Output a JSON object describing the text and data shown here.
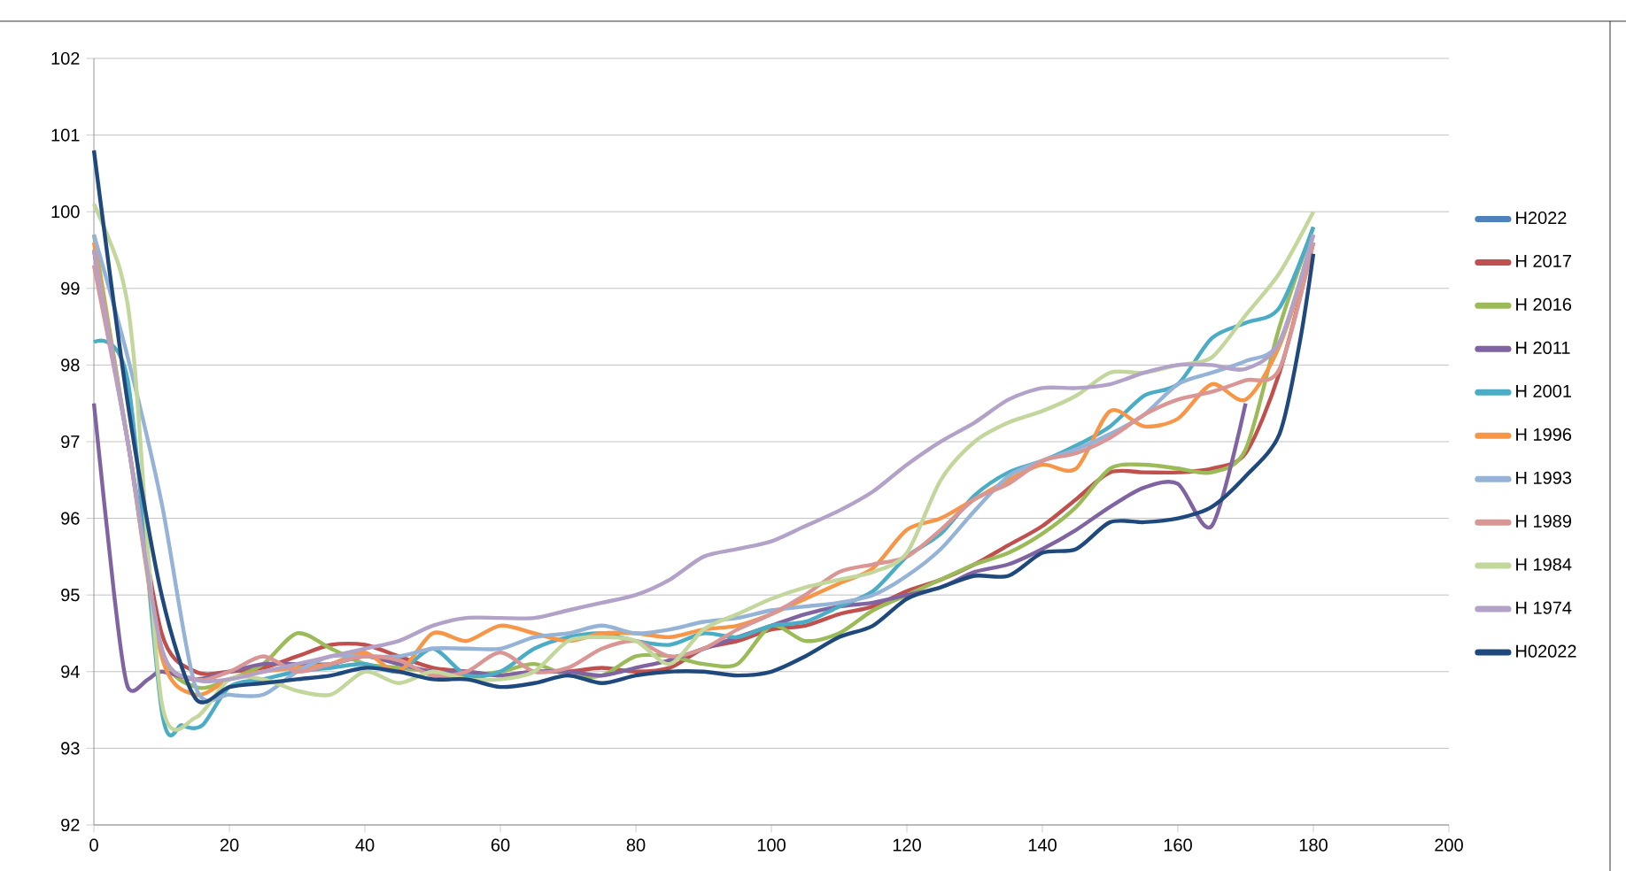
{
  "chart_data": {
    "type": "line",
    "xlim": [
      0,
      200
    ],
    "ylim": [
      92,
      102
    ],
    "xticks": [
      0,
      20,
      40,
      60,
      80,
      100,
      120,
      140,
      160,
      180,
      200
    ],
    "yticks": [
      92,
      93,
      94,
      95,
      96,
      97,
      98,
      99,
      100,
      101,
      102
    ],
    "grid": "y",
    "legend": "right",
    "marker": "none",
    "line_style": "solid",
    "series": [
      {
        "name": "H2022",
        "color": "#4f81bd",
        "values": [
          null
        ]
      },
      {
        "name": "H 2017",
        "color": "#c0504d",
        "x": [
          0,
          5,
          10,
          15,
          20,
          25,
          30,
          35,
          40,
          45,
          50,
          55,
          60,
          65,
          70,
          75,
          80,
          85,
          90,
          95,
          100,
          105,
          110,
          115,
          120,
          125,
          130,
          135,
          140,
          145,
          150,
          155,
          160,
          165,
          170,
          175,
          180
        ],
        "values": [
          99.5,
          97,
          94.5,
          94.0,
          94.0,
          94.05,
          94.2,
          94.35,
          94.35,
          94.2,
          94.05,
          94.0,
          93.95,
          94.0,
          94.0,
          94.05,
          94.0,
          94.05,
          94.3,
          94.4,
          94.55,
          94.6,
          94.75,
          94.85,
          95.05,
          95.2,
          95.4,
          95.65,
          95.9,
          96.25,
          96.6,
          96.6,
          96.6,
          96.65,
          96.85,
          97.9,
          99.6
        ]
      },
      {
        "name": "H 2016",
        "color": "#9bbb59",
        "x": [
          0,
          5,
          10,
          15,
          20,
          25,
          30,
          35,
          40,
          45,
          50,
          55,
          60,
          65,
          70,
          75,
          80,
          85,
          90,
          95,
          100,
          105,
          110,
          115,
          120,
          125,
          130,
          135,
          140,
          145,
          150,
          155,
          160,
          165,
          170,
          175,
          180
        ],
        "values": [
          99.7,
          97,
          94.3,
          93.8,
          93.9,
          94.1,
          94.5,
          94.3,
          94.1,
          94.05,
          94.0,
          93.95,
          94.0,
          94.1,
          93.95,
          93.95,
          94.2,
          94.2,
          94.1,
          94.1,
          94.6,
          94.4,
          94.5,
          94.8,
          95.0,
          95.2,
          95.4,
          95.55,
          95.8,
          96.15,
          96.65,
          96.7,
          96.65,
          96.6,
          96.9,
          98.5,
          99.8
        ]
      },
      {
        "name": "H 2011",
        "color": "#8064a2",
        "x": [
          0,
          3,
          5,
          8,
          10,
          15,
          20,
          25,
          30,
          35,
          40,
          45,
          50,
          55,
          60,
          65,
          70,
          75,
          80,
          85,
          90,
          95,
          100,
          105,
          110,
          115,
          120,
          125,
          130,
          135,
          140,
          145,
          150,
          155,
          160,
          165,
          170
        ],
        "values": [
          97.5,
          95,
          93.8,
          93.9,
          94.0,
          93.9,
          94.0,
          94.1,
          94.1,
          94.1,
          94.2,
          94.1,
          94.0,
          94.0,
          93.95,
          94.0,
          94.0,
          93.95,
          94.05,
          94.15,
          94.3,
          94.45,
          94.6,
          94.75,
          94.85,
          94.9,
          95.0,
          95.1,
          95.3,
          95.4,
          95.6,
          95.85,
          96.15,
          96.4,
          96.45,
          95.9,
          97.5
        ]
      },
      {
        "name": "H 2001",
        "color": "#4bacc6",
        "x": [
          0,
          5,
          10,
          13,
          16,
          20,
          25,
          30,
          35,
          40,
          45,
          50,
          55,
          60,
          65,
          70,
          75,
          80,
          85,
          90,
          95,
          100,
          105,
          110,
          115,
          120,
          125,
          130,
          135,
          140,
          145,
          150,
          155,
          160,
          165,
          170,
          175,
          180
        ],
        "values": [
          98.3,
          97.8,
          93.5,
          93.3,
          93.3,
          93.8,
          93.9,
          94.0,
          94.05,
          94.1,
          94.0,
          94.3,
          93.95,
          94.0,
          94.3,
          94.45,
          94.5,
          94.4,
          94.35,
          94.5,
          94.45,
          94.6,
          94.65,
          94.85,
          95.05,
          95.5,
          95.8,
          96.3,
          96.6,
          96.75,
          96.95,
          97.2,
          97.6,
          97.75,
          98.35,
          98.55,
          98.75,
          99.8
        ]
      },
      {
        "name": "H 1996",
        "color": "#f79646",
        "x": [
          0,
          5,
          10,
          15,
          20,
          25,
          30,
          35,
          40,
          45,
          50,
          55,
          60,
          65,
          70,
          75,
          80,
          85,
          90,
          95,
          100,
          105,
          110,
          115,
          120,
          125,
          130,
          135,
          140,
          145,
          150,
          155,
          160,
          165,
          170,
          175,
          180
        ],
        "values": [
          99.6,
          97,
          94.2,
          93.7,
          93.9,
          94.0,
          94.05,
          94.1,
          94.25,
          94.0,
          94.5,
          94.4,
          94.6,
          94.5,
          94.4,
          94.5,
          94.5,
          94.45,
          94.55,
          94.6,
          94.75,
          94.95,
          95.15,
          95.35,
          95.85,
          96.0,
          96.25,
          96.5,
          96.7,
          96.65,
          97.4,
          97.2,
          97.3,
          97.75,
          97.55,
          98.25,
          99.6
        ]
      },
      {
        "name": "H 1993",
        "color": "#95b3d7",
        "x": [
          0,
          5,
          10,
          15,
          20,
          25,
          30,
          35,
          40,
          45,
          50,
          55,
          60,
          65,
          70,
          75,
          80,
          85,
          90,
          95,
          100,
          105,
          110,
          115,
          120,
          125,
          130,
          135,
          140,
          145,
          150,
          155,
          160,
          165,
          170,
          175,
          180
        ],
        "values": [
          99.7,
          98.1,
          96.2,
          93.8,
          93.7,
          93.7,
          94.0,
          94.2,
          94.2,
          94.2,
          94.3,
          94.3,
          94.3,
          94.45,
          94.5,
          94.6,
          94.5,
          94.55,
          94.65,
          94.7,
          94.8,
          94.85,
          94.9,
          95.0,
          95.25,
          95.6,
          96.1,
          96.55,
          96.75,
          96.9,
          97.1,
          97.35,
          97.75,
          97.9,
          98.05,
          98.3,
          99.7
        ]
      },
      {
        "name": "H 1989",
        "color": "#d99694",
        "x": [
          0,
          5,
          10,
          15,
          20,
          25,
          30,
          35,
          40,
          45,
          50,
          55,
          60,
          65,
          70,
          75,
          80,
          85,
          90,
          95,
          100,
          105,
          110,
          115,
          120,
          125,
          130,
          135,
          140,
          145,
          150,
          155,
          160,
          165,
          170,
          175,
          180
        ],
        "values": [
          99.3,
          97,
          94.3,
          93.9,
          94.0,
          94.2,
          94.0,
          94.1,
          94.2,
          94.15,
          93.95,
          94.0,
          94.25,
          94.0,
          94.05,
          94.3,
          94.4,
          94.2,
          94.3,
          94.55,
          94.75,
          95.0,
          95.3,
          95.4,
          95.5,
          95.85,
          96.25,
          96.45,
          96.75,
          96.85,
          97.05,
          97.35,
          97.55,
          97.65,
          97.8,
          97.95,
          99.6
        ]
      },
      {
        "name": "H 1984",
        "color": "#c3d69b",
        "x": [
          0,
          4,
          6,
          10,
          15,
          20,
          25,
          30,
          35,
          40,
          45,
          50,
          55,
          60,
          65,
          70,
          75,
          80,
          85,
          90,
          95,
          100,
          105,
          110,
          115,
          120,
          125,
          130,
          135,
          140,
          145,
          150,
          155,
          160,
          165,
          170,
          175,
          180
        ],
        "values": [
          100.1,
          99.2,
          98,
          93.6,
          93.4,
          93.9,
          93.9,
          93.75,
          93.7,
          94.0,
          93.85,
          94.0,
          93.9,
          93.9,
          94.0,
          94.4,
          94.45,
          94.4,
          94.1,
          94.55,
          94.75,
          94.95,
          95.1,
          95.2,
          95.3,
          95.55,
          96.5,
          97.0,
          97.25,
          97.4,
          97.6,
          97.9,
          97.9,
          98.0,
          98.1,
          98.65,
          99.2,
          100.0
        ]
      },
      {
        "name": "H 1974",
        "color": "#b3a2c7",
        "x": [
          0,
          5,
          10,
          15,
          20,
          25,
          30,
          35,
          40,
          45,
          50,
          55,
          60,
          65,
          70,
          75,
          80,
          85,
          90,
          95,
          100,
          105,
          110,
          115,
          120,
          125,
          130,
          135,
          140,
          145,
          150,
          155,
          160,
          165,
          170,
          175,
          180
        ],
        "values": [
          99.5,
          97,
          94.3,
          93.9,
          93.9,
          94.0,
          94.1,
          94.2,
          94.3,
          94.4,
          94.6,
          94.7,
          94.7,
          94.7,
          94.8,
          94.9,
          95.0,
          95.2,
          95.5,
          95.6,
          95.7,
          95.9,
          96.1,
          96.35,
          96.7,
          97.0,
          97.25,
          97.55,
          97.7,
          97.7,
          97.75,
          97.9,
          98.0,
          98.0,
          97.95,
          98.3,
          99.7
        ]
      },
      {
        "name": "H02022",
        "color": "#1f497d",
        "x": [
          0,
          5,
          10,
          15,
          20,
          25,
          30,
          35,
          40,
          45,
          50,
          55,
          60,
          65,
          70,
          75,
          80,
          85,
          90,
          95,
          100,
          105,
          110,
          115,
          120,
          125,
          130,
          135,
          140,
          145,
          150,
          155,
          160,
          165,
          170,
          175,
          178,
          180
        ],
        "values": [
          100.8,
          97.5,
          95,
          93.65,
          93.8,
          93.85,
          93.9,
          93.95,
          94.05,
          94.0,
          93.9,
          93.9,
          93.8,
          93.85,
          93.95,
          93.85,
          93.95,
          94.0,
          94.0,
          93.95,
          94.0,
          94.2,
          94.45,
          94.6,
          94.95,
          95.1,
          95.25,
          95.25,
          95.55,
          95.6,
          95.95,
          95.95,
          96.0,
          96.15,
          96.55,
          97.1,
          98.3,
          99.45
        ]
      }
    ]
  }
}
